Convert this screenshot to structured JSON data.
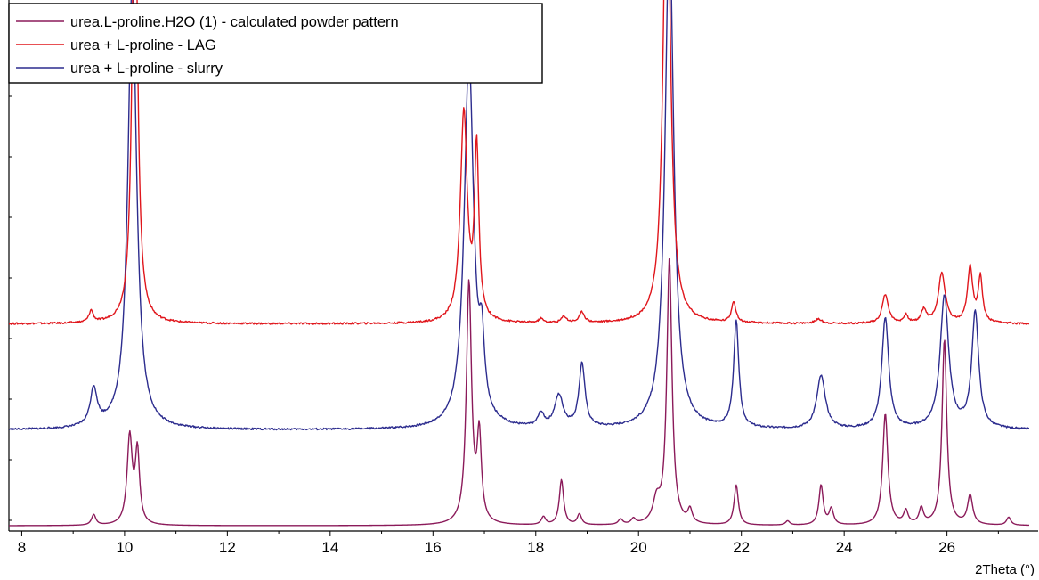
{
  "chart_data": {
    "type": "line",
    "xlabel": "2Theta (°)",
    "ylabel": "",
    "xlim": [
      7.75,
      27.6
    ],
    "ylim": [
      0,
      100
    ],
    "grid": false,
    "legend_position": "top-left",
    "x_ticks": [
      8,
      10,
      12,
      14,
      16,
      18,
      20,
      22,
      24,
      26
    ],
    "series": [
      {
        "name": "urea.L-proline.H2O (1) - calculated powder pattern",
        "color": "#8b1a5a",
        "baseline": 1,
        "peaks": [
          [
            9.4,
            2.0,
            0.05
          ],
          [
            10.1,
            16.5,
            0.06
          ],
          [
            10.25,
            13.5,
            0.05
          ],
          [
            16.7,
            45.5,
            0.06
          ],
          [
            16.9,
            16.0,
            0.05
          ],
          [
            18.15,
            1.5,
            0.05
          ],
          [
            18.5,
            8.5,
            0.05
          ],
          [
            18.85,
            2.0,
            0.05
          ],
          [
            19.65,
            1.0,
            0.05
          ],
          [
            19.9,
            1.0,
            0.05
          ],
          [
            20.35,
            4.0,
            0.08
          ],
          [
            20.6,
            50.0,
            0.06
          ],
          [
            21.0,
            2.5,
            0.05
          ],
          [
            21.9,
            7.5,
            0.05
          ],
          [
            22.9,
            0.8,
            0.05
          ],
          [
            23.55,
            7.5,
            0.05
          ],
          [
            23.75,
            3.0,
            0.05
          ],
          [
            24.8,
            21.0,
            0.06
          ],
          [
            25.2,
            2.5,
            0.05
          ],
          [
            25.5,
            3.0,
            0.05
          ],
          [
            25.95,
            35.0,
            0.055
          ],
          [
            26.45,
            5.5,
            0.06
          ],
          [
            27.2,
            1.5,
            0.05
          ]
        ]
      },
      {
        "name": "urea + L-proline - LAG",
        "color": "#e0161c",
        "baseline": 39,
        "peaks": [
          [
            9.35,
            2.2,
            0.05
          ],
          [
            10.2,
            95.0,
            0.06
          ],
          [
            16.6,
            39.5,
            0.08
          ],
          [
            16.85,
            32.0,
            0.05
          ],
          [
            18.1,
            0.8,
            0.05
          ],
          [
            18.55,
            1.2,
            0.06
          ],
          [
            18.9,
            2.0,
            0.06
          ],
          [
            20.55,
            95.0,
            0.08
          ],
          [
            21.85,
            4.0,
            0.05
          ],
          [
            23.5,
            0.8,
            0.08
          ],
          [
            24.8,
            5.5,
            0.07
          ],
          [
            25.2,
            1.5,
            0.05
          ],
          [
            25.55,
            2.5,
            0.06
          ],
          [
            25.9,
            9.5,
            0.08
          ],
          [
            26.45,
            10.5,
            0.06
          ],
          [
            26.65,
            8.5,
            0.05
          ]
        ]
      },
      {
        "name": "urea + L-proline - slurry",
        "color": "#2c2c8e",
        "baseline": 19,
        "peaks": [
          [
            9.4,
            7.0,
            0.08
          ],
          [
            10.15,
            85.0,
            0.1
          ],
          [
            16.7,
            70.0,
            0.11
          ],
          [
            16.95,
            12.0,
            0.06
          ],
          [
            18.1,
            2.5,
            0.07
          ],
          [
            18.45,
            6.0,
            0.1
          ],
          [
            18.9,
            12.0,
            0.07
          ],
          [
            20.6,
            95.0,
            0.1
          ],
          [
            21.9,
            20.0,
            0.06
          ],
          [
            23.55,
            10.0,
            0.1
          ],
          [
            24.8,
            21.0,
            0.08
          ],
          [
            25.95,
            25.0,
            0.1
          ],
          [
            26.55,
            22.0,
            0.08
          ]
        ]
      }
    ]
  }
}
